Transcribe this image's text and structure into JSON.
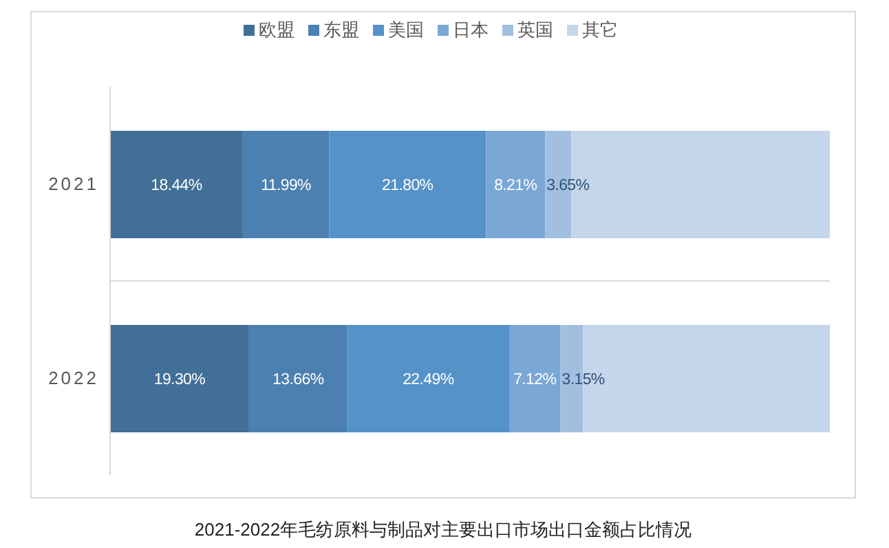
{
  "chart_data": {
    "type": "bar",
    "title": "2021-2022年毛纺原料与制品对主要出口市场出口金额占比情况",
    "orientation": "horizontal",
    "stacked": true,
    "categories": [
      "2021",
      "2022"
    ],
    "series": [
      {
        "name": "欧盟",
        "color": "#416f97",
        "values": [
          18.44,
          19.3
        ],
        "value_labels": [
          "18.44%",
          "19.30%"
        ]
      },
      {
        "name": "东盟",
        "color": "#4c80b1",
        "values": [
          11.99,
          13.66
        ],
        "value_labels": [
          "11.99%",
          "13.66%"
        ]
      },
      {
        "name": "美国",
        "color": "#5592c8",
        "values": [
          21.8,
          22.49
        ],
        "value_labels": [
          "21.80%",
          "22.49%"
        ]
      },
      {
        "name": "日本",
        "color": "#7aa7d6",
        "values": [
          8.21,
          7.12
        ],
        "value_labels": [
          "8.21%",
          "7.12%"
        ]
      },
      {
        "name": "英国",
        "color": "#a3bfe0",
        "values": [
          3.65,
          3.15
        ],
        "value_labels": [
          "3.65%",
          "3.15%"
        ]
      },
      {
        "name": "其它",
        "color": "#c5d5ea",
        "values": [
          35.91,
          34.28
        ],
        "value_labels": [
          null,
          null
        ]
      }
    ],
    "grid": "y",
    "legend": "top"
  }
}
